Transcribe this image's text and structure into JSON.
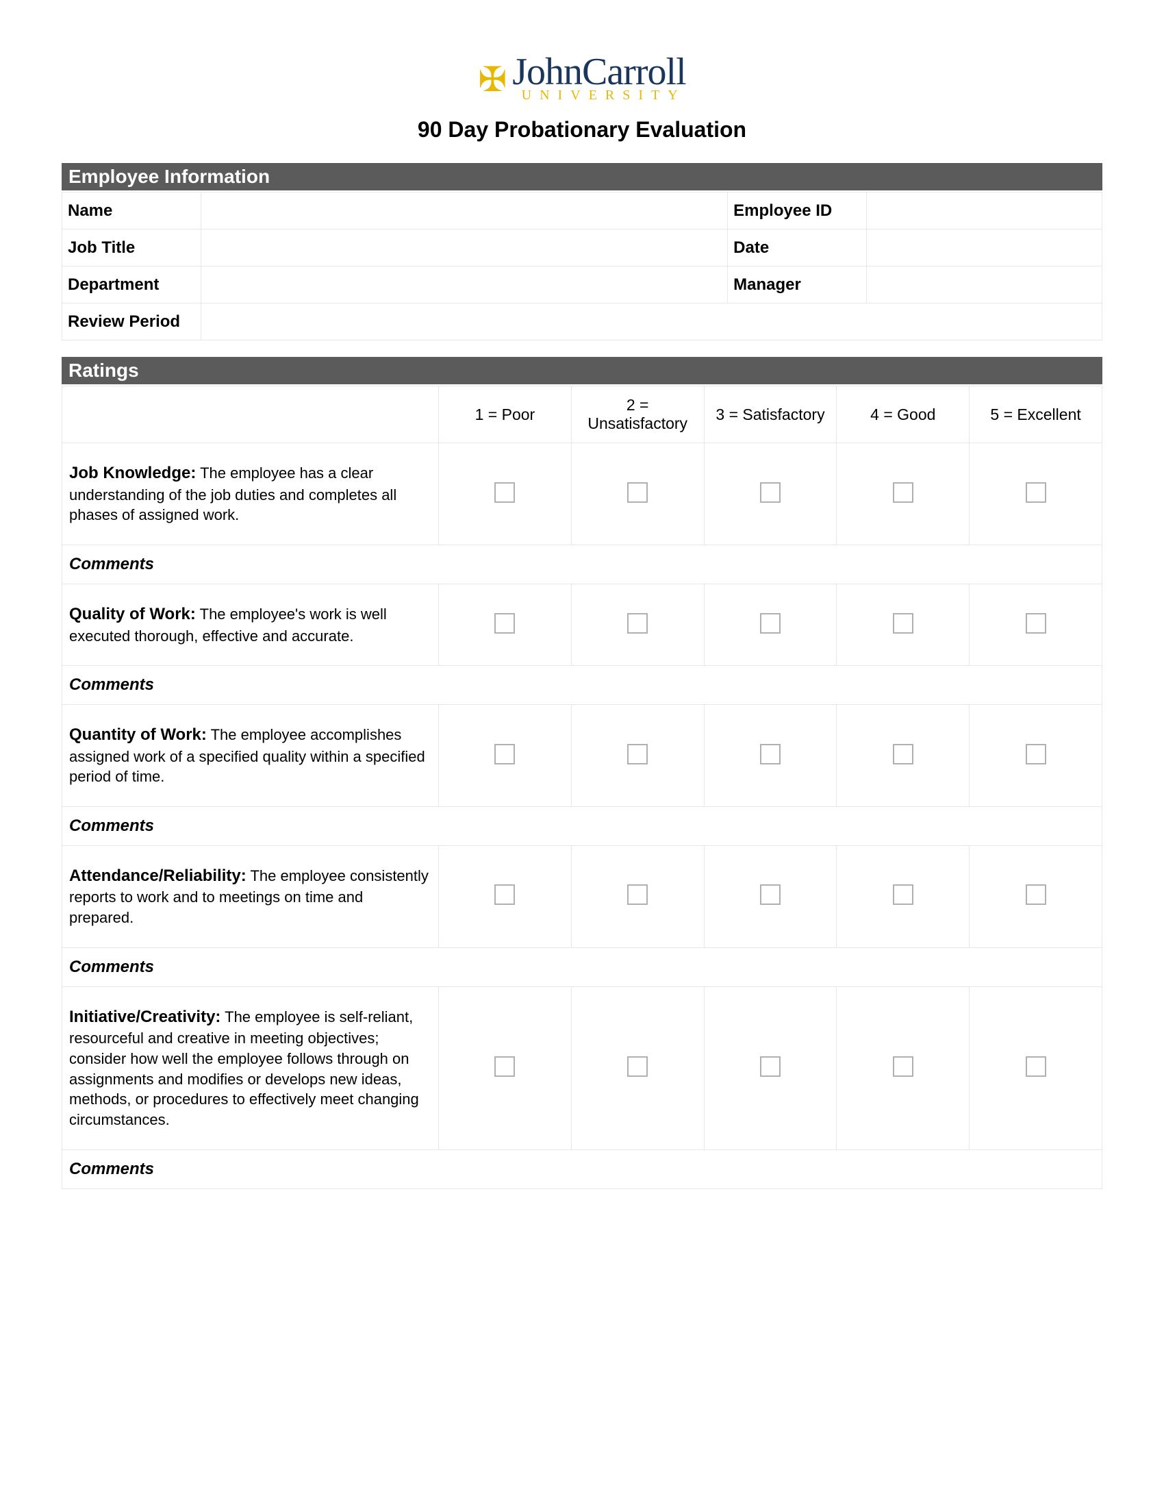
{
  "logo": {
    "main": "JohnCarroll",
    "sub": "UNIVERSITY"
  },
  "title": "90 Day Probationary Evaluation",
  "sections": {
    "employee_info": "Employee Information",
    "ratings": "Ratings"
  },
  "info_fields": {
    "name": "Name",
    "employee_id": "Employee ID",
    "job_title": "Job Title",
    "date": "Date",
    "department": "Department",
    "manager": "Manager",
    "review_period": "Review Period"
  },
  "rating_scale": [
    "1 = Poor",
    "2 = Unsatisfactory",
    "3 = Satisfactory",
    "4 = Good",
    "5 = Excellent"
  ],
  "comments_label": "Comments",
  "criteria": [
    {
      "title": "Job Knowledge:",
      "desc": "The employee has a clear understanding of the job duties and completes all phases of assigned work."
    },
    {
      "title": "Quality of Work:",
      "desc": "The employee's work is well executed thorough, effective and accurate."
    },
    {
      "title": "Quantity of Work:",
      "desc": "The employee accomplishes assigned work of a specified quality within a specified period of time."
    },
    {
      "title": "Attendance/Reliability:",
      "desc": "The employee consistently reports to work and to meetings on time and prepared."
    },
    {
      "title": "Initiative/Creativity:",
      "desc": "The employee is self-reliant, resourceful and creative in meeting objectives; consider how well the employee follows through on assignments and modifies or develops new ideas, methods, or procedures to effectively meet changing circumstances."
    }
  ],
  "colors": {
    "section_bar_bg": "#5b5b5b",
    "section_bar_text": "#ffffff",
    "border": "#e6e6e6",
    "checkbox_border": "#b0b0b0",
    "logo_primary": "#1a365d",
    "logo_accent": "#e8b800"
  }
}
